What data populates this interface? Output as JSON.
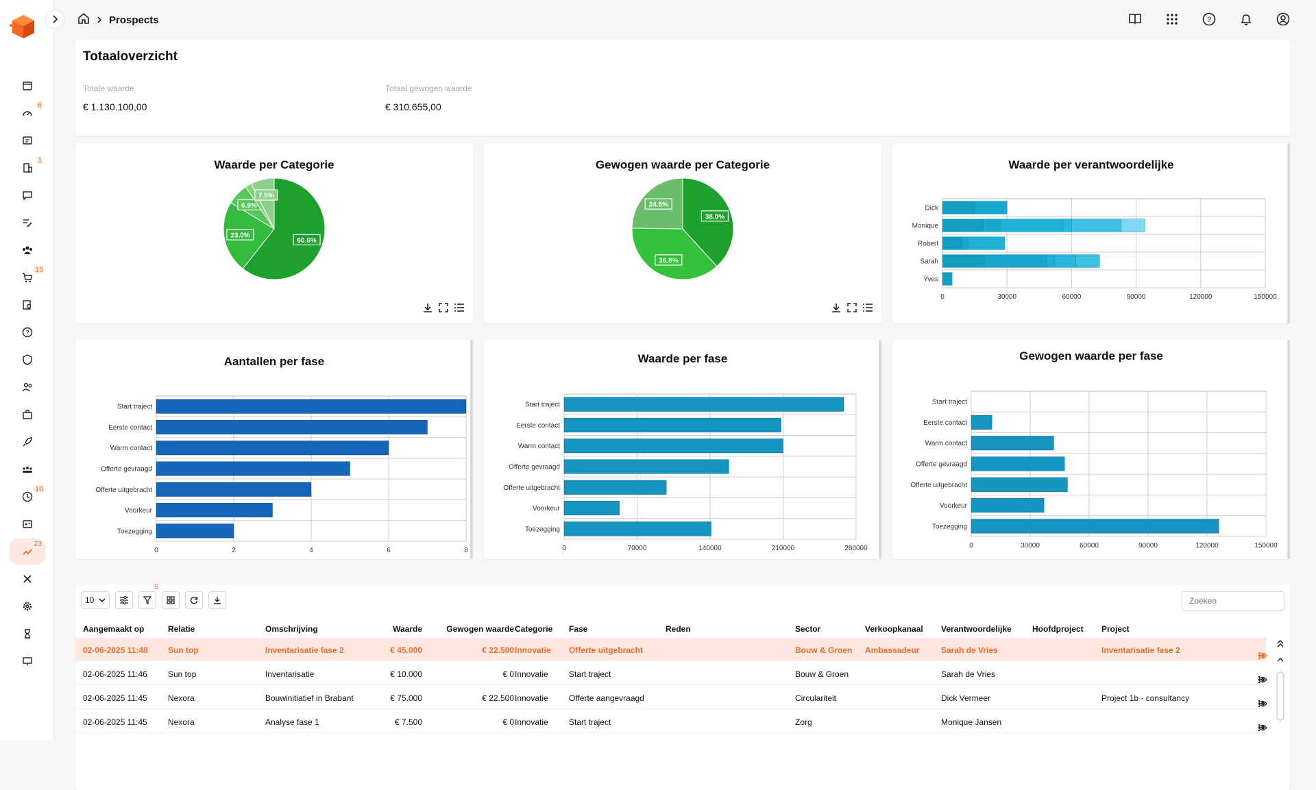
{
  "header": {
    "breadcrumb_page": "Prospects"
  },
  "sidebar": {
    "badges": {
      "dashboard": "6",
      "company": "1",
      "cart": "15",
      "time": "10",
      "trend": "23"
    }
  },
  "totals": {
    "title": "Totaaloverzicht",
    "total_label": "Totale waarde",
    "total_value": "€ 1.130.100,00",
    "weighted_label": "Totaal gewogen waarde",
    "weighted_value": "€ 310.655,00"
  },
  "charts": {
    "pie1_title": "Waarde per Categorie",
    "pie2_title": "Gewogen waarde per Categorie",
    "bar_resp_title": "Waarde per verantwoordelijke",
    "bar_count_title": "Aantallen per fase",
    "bar_value_title": "Waarde per fase",
    "bar_weighted_title": "Gewogen waarde per fase"
  },
  "chart_data": [
    {
      "type": "pie",
      "title": "Waarde per Categorie",
      "slices": [
        {
          "label": "60.6%",
          "value": 60.6,
          "color": "#1ea02c"
        },
        {
          "label": "23.0%",
          "value": 23.0,
          "color": "#34bb3f"
        },
        {
          "label": "6.9%",
          "value": 6.9,
          "color": "#55c85c"
        },
        {
          "label": "",
          "value": 2.0,
          "color": "#7fd07f"
        },
        {
          "label": "7.5%",
          "value": 7.5,
          "color": "#8fcf8c"
        }
      ]
    },
    {
      "type": "pie",
      "title": "Gewogen waarde per Categorie",
      "slices": [
        {
          "label": "38.0%",
          "value": 38.0,
          "color": "#1ea02c"
        },
        {
          "label": "36.8%",
          "value": 36.8,
          "color": "#34c13b"
        },
        {
          "label": "24.6%",
          "value": 24.6,
          "color": "#6abd6a"
        }
      ]
    },
    {
      "type": "bar",
      "title": "Waarde per verantwoordelijke",
      "orientation": "horizontal-stacked",
      "categories": [
        "Dick",
        "Monique",
        "Robert",
        "Sarah",
        "Yves"
      ],
      "segments": [
        [
          15000,
          15000
        ],
        [
          19000,
          8000,
          29000,
          4000,
          23000,
          11000
        ],
        [
          9000,
          3000,
          17000
        ],
        [
          19500,
          29000,
          3500,
          10000,
          11000
        ],
        [
          4500
        ]
      ],
      "xlim": [
        0,
        150000
      ],
      "ticks": [
        "0",
        "30000",
        "60000",
        "90000",
        "120000",
        "150000"
      ]
    },
    {
      "type": "bar",
      "title": "Aantallen per fase",
      "orientation": "horizontal",
      "categories": [
        "Start traject",
        "Eerste contact",
        "Warm contact",
        "Offerte gevraagd",
        "Offerte uitgebracht",
        "Voorkeur",
        "Toezegging"
      ],
      "values": [
        8,
        7,
        6,
        5,
        4,
        3,
        2
      ],
      "xlim": [
        0,
        8
      ],
      "ticks": [
        "0",
        "2",
        "4",
        "6",
        "8"
      ]
    },
    {
      "type": "bar",
      "title": "Waarde per fase",
      "orientation": "horizontal",
      "categories": [
        "Start traject",
        "Eerste contact",
        "Warm contact",
        "Offerte gevraagd",
        "Offerte uitgebracht",
        "Voorkeur",
        "Toezegging"
      ],
      "values": [
        268000,
        208000,
        210000,
        158000,
        98000,
        53000,
        141000
      ],
      "xlim": [
        0,
        280000
      ],
      "ticks": [
        "0",
        "70000",
        "140000",
        "210000",
        "280000"
      ]
    },
    {
      "type": "bar",
      "title": "Gewogen waarde per fase",
      "orientation": "horizontal",
      "categories": [
        "Start traject",
        "Eerste contact",
        "Warm contact",
        "Offerte gevraagd",
        "Offerte uitgebracht",
        "Voorkeur",
        "Toezegging"
      ],
      "values": [
        0,
        10500,
        42000,
        47500,
        49000,
        37000,
        126000
      ],
      "xlim": [
        0,
        150000
      ],
      "ticks": [
        "0",
        "30000",
        "60000",
        "90000",
        "120000",
        "150000"
      ]
    }
  ],
  "table": {
    "page_size": "10",
    "filter_badge": "5",
    "search_placeholder": "Zoeken",
    "headers": [
      "Aangemaakt op",
      "Relatie",
      "Omschrijving",
      "Waarde",
      "Gewogen waarde",
      "Categorie",
      "Fase",
      "Reden",
      "Sector",
      "Verkoopkanaal",
      "Verantwoordelijke",
      "Hoofdproject",
      "Project"
    ],
    "rows": [
      {
        "date": "02-06-2025 11:48",
        "rel": "Sun top",
        "desc": "Inventarisatie fase 2",
        "val": "€ 45.000",
        "wval": "€ 22.500",
        "cat": "Innovatie",
        "fase": "Offerte uitgebracht",
        "reden": "",
        "sector": "Bouw & Groen",
        "kanaal": "Ambassadeur",
        "verant": "Sarah de Vries",
        "hoofd": "",
        "project": "Inventarisatie fase 2"
      },
      {
        "date": "02-06-2025 11:46",
        "rel": "Sun top",
        "desc": "Inventarisatie",
        "val": "€ 10.000",
        "wval": "€ 0",
        "cat": "Innovatie",
        "fase": "Start traject",
        "reden": "",
        "sector": "Bouw & Groen",
        "kanaal": "",
        "verant": "Sarah de Vries",
        "hoofd": "",
        "project": ""
      },
      {
        "date": "02-06-2025 11:45",
        "rel": "Nexora",
        "desc": "Bouwinitiatief in Brabant",
        "val": "€ 75.000",
        "wval": "€ 22.500",
        "cat": "Innovatie",
        "fase": "Offerte aangevraagd",
        "reden": "",
        "sector": "Circulariteit",
        "kanaal": "",
        "verant": "Dick Vermeer",
        "hoofd": "",
        "project": "Project 1b - consultancy"
      },
      {
        "date": "02-06-2025 11:45",
        "rel": "Nexora",
        "desc": "Analyse fase 1",
        "val": "€ 7.500",
        "wval": "€ 0",
        "cat": "Innovatie",
        "fase": "Start traject",
        "reden": "",
        "sector": "Zorg",
        "kanaal": "",
        "verant": "Monique Jansen",
        "hoofd": "",
        "project": ""
      }
    ]
  }
}
